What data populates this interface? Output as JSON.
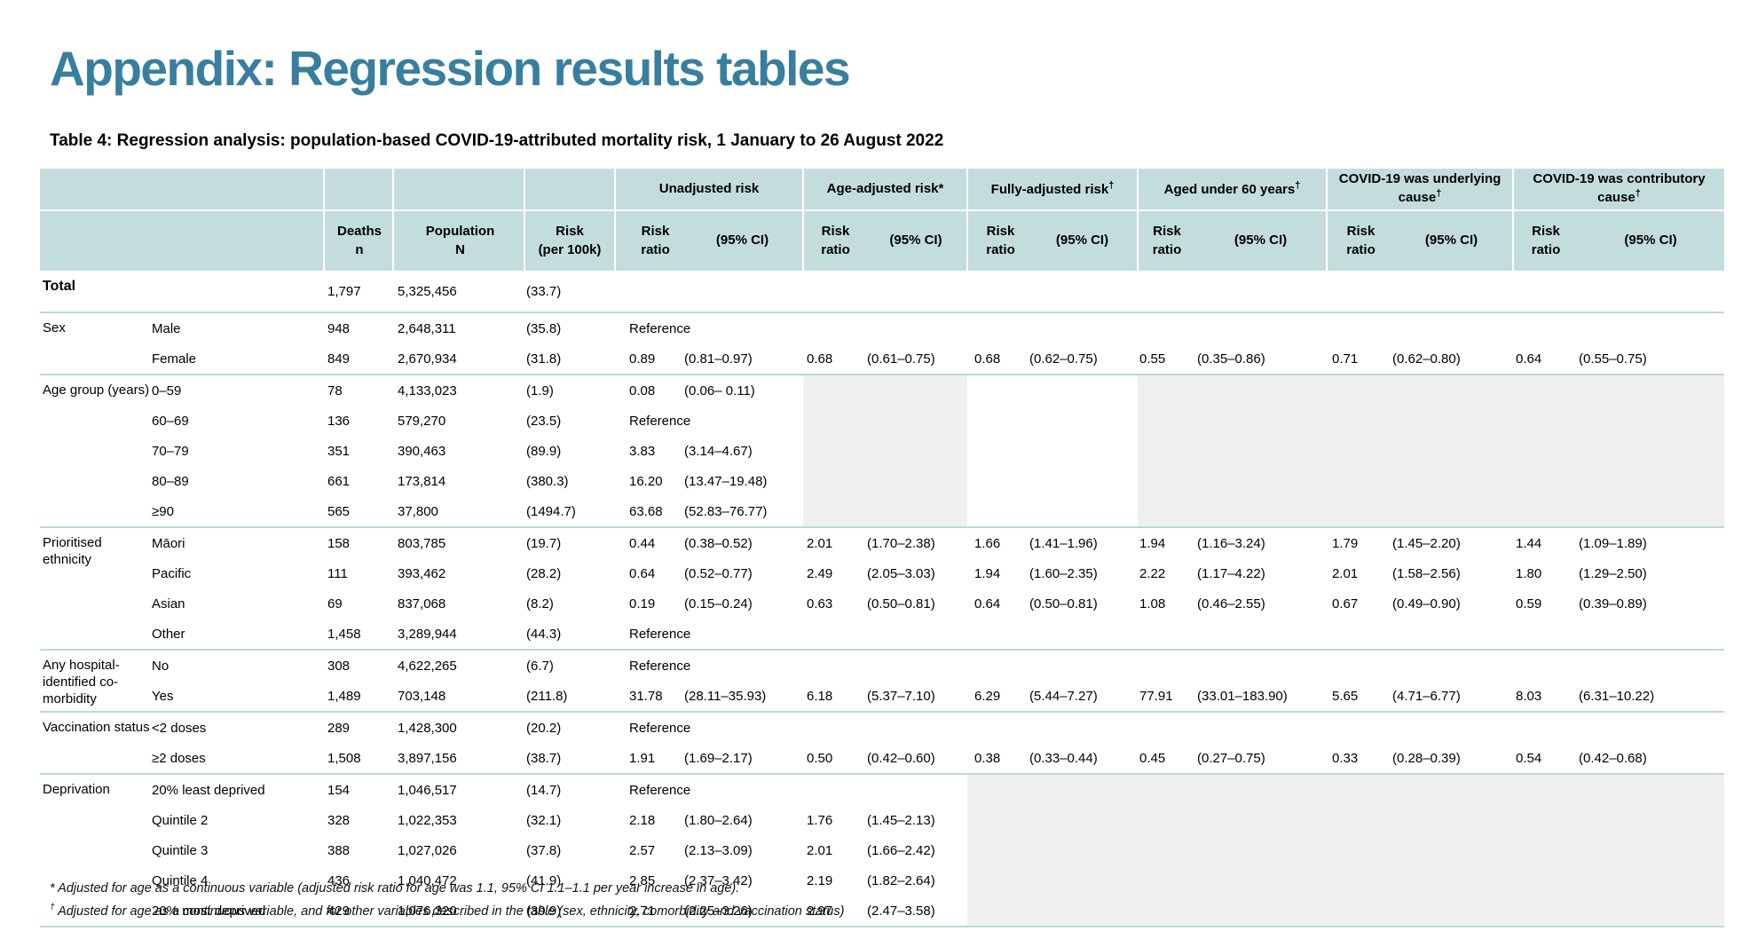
{
  "page": {
    "title": "Appendix: Regression results tables",
    "table_caption": "Table 4: Regression analysis: population-based COVID-19-attributed mortality risk, 1 January to 26 August 2022"
  },
  "colors": {
    "title_color": "#387f9f",
    "header_bg": "#c3dddc",
    "section_line": "#b9dad9",
    "shaded_cell": "#f0f0f0"
  },
  "table": {
    "header_groups": [
      {
        "label": "",
        "sup": "",
        "span": 2
      },
      {
        "label": "",
        "sup": "",
        "span": 1
      },
      {
        "label": "",
        "sup": "",
        "span": 1
      },
      {
        "label": "",
        "sup": "",
        "span": 1
      },
      {
        "label": "Unadjusted risk",
        "sup": "",
        "span": 2
      },
      {
        "label": "Age-adjusted risk*",
        "sup": "",
        "span": 2
      },
      {
        "label": "Fully-adjusted risk",
        "sup": "†",
        "span": 2
      },
      {
        "label": "Aged under 60 years",
        "sup": "†",
        "span": 2
      },
      {
        "label": "COVID-19 was underlying cause",
        "sup": "†",
        "span": 2
      },
      {
        "label": "COVID-19 was contributory cause",
        "sup": "†",
        "span": 2
      }
    ],
    "header_cols": [
      "",
      "",
      "Deaths\nn",
      "Population\nN",
      "Risk\n(per 100k)",
      "Risk ratio",
      "(95% CI)",
      "Risk\nratio",
      "(95% CI)",
      "Risk ratio",
      "(95% CI)",
      "Risk ratio",
      "(95% CI)",
      "Risk ratio",
      "(95% CI)",
      "Risk ratio",
      "(95% CI)"
    ],
    "sections": [
      {
        "category": "Total",
        "category_bold": true,
        "shade_cols": [],
        "rows": [
          {
            "sub": "",
            "values": [
              "1,797",
              "5,325,456",
              "(33.7)",
              "",
              "",
              "",
              "",
              "",
              "",
              "",
              "",
              "",
              "",
              "",
              ""
            ]
          }
        ]
      },
      {
        "category": "Sex",
        "category_bold": false,
        "shade_cols": [],
        "rows": [
          {
            "sub": "Male",
            "values": [
              "948",
              "2,648,311",
              "(35.8)",
              "Reference",
              "",
              "",
              "",
              "",
              "",
              "",
              "",
              "",
              "",
              "",
              ""
            ]
          },
          {
            "sub": "Female",
            "values": [
              "849",
              "2,670,934",
              "(31.8)",
              "0.89",
              "(0.81–0.97)",
              "0.68",
              "(0.61–0.75)",
              "0.68",
              "(0.62–0.75)",
              "0.55",
              "(0.35–0.86)",
              "0.71",
              "(0.62–0.80)",
              "0.64",
              "(0.55–0.75)"
            ]
          }
        ]
      },
      {
        "category": "Age group (years)",
        "category_bold": false,
        "shade_cols": [
          5,
          6,
          9,
          10,
          11,
          12,
          13,
          14
        ],
        "rows": [
          {
            "sub": "0–59",
            "values": [
              "78",
              "4,133,023",
              "(1.9)",
              "0.08",
              "(0.06– 0.11)",
              "",
              "",
              "",
              "",
              "",
              "",
              "",
              "",
              "",
              ""
            ]
          },
          {
            "sub": "60–69",
            "values": [
              "136",
              "579,270",
              "(23.5)",
              "Reference",
              "",
              "",
              "",
              "",
              "",
              "",
              "",
              "",
              "",
              "",
              ""
            ]
          },
          {
            "sub": "70–79",
            "values": [
              "351",
              "390,463",
              "(89.9)",
              "3.83",
              "(3.14–4.67)",
              "",
              "",
              "",
              "",
              "",
              "",
              "",
              "",
              "",
              ""
            ]
          },
          {
            "sub": "80–89",
            "values": [
              "661",
              "173,814",
              "(380.3)",
              "16.20",
              "(13.47–19.48)",
              "",
              "",
              "",
              "",
              "",
              "",
              "",
              "",
              "",
              ""
            ]
          },
          {
            "sub": "≥90",
            "values": [
              "565",
              "37,800",
              "(1494.7)",
              "63.68",
              "(52.83–76.77)",
              "",
              "",
              "",
              "",
              "",
              "",
              "",
              "",
              "",
              ""
            ]
          }
        ]
      },
      {
        "category": "Prioritised\nethnicity",
        "category_bold": false,
        "shade_cols": [],
        "rows": [
          {
            "sub": "Māori",
            "values": [
              "158",
              "803,785",
              "(19.7)",
              "0.44",
              "(0.38–0.52)",
              "2.01",
              "(1.70–2.38)",
              "1.66",
              "(1.41–1.96)",
              "1.94",
              "(1.16–3.24)",
              "1.79",
              "(1.45–2.20)",
              "1.44",
              "(1.09–1.89)"
            ]
          },
          {
            "sub": "Pacific",
            "values": [
              "111",
              "393,462",
              "(28.2)",
              "0.64",
              "(0.52–0.77)",
              "2.49",
              "(2.05–3.03)",
              "1.94",
              "(1.60–2.35)",
              "2.22",
              "(1.17–4.22)",
              "2.01",
              "(1.58–2.56)",
              "1.80",
              "(1.29–2.50)"
            ]
          },
          {
            "sub": "Asian",
            "values": [
              "69",
              "837,068",
              "(8.2)",
              "0.19",
              "(0.15–0.24)",
              "0.63",
              "(0.50–0.81)",
              "0.64",
              "(0.50–0.81)",
              "1.08",
              "(0.46–2.55)",
              "0.67",
              "(0.49–0.90)",
              "0.59",
              "(0.39–0.89)"
            ]
          },
          {
            "sub": "Other",
            "values": [
              "1,458",
              "3,289,944",
              "(44.3)",
              "Reference",
              "",
              "",
              "",
              "",
              "",
              "",
              "",
              "",
              "",
              "",
              ""
            ]
          }
        ]
      },
      {
        "category": "Any hospital-\nidentified co-\nmorbidity",
        "category_bold": false,
        "shade_cols": [],
        "rows": [
          {
            "sub": "No",
            "values": [
              "308",
              "4,622,265",
              "(6.7)",
              "Reference",
              "",
              "",
              "",
              "",
              "",
              "",
              "",
              "",
              "",
              "",
              ""
            ]
          },
          {
            "sub": "Yes",
            "values": [
              "1,489",
              "703,148",
              "(211.8)",
              "31.78",
              "(28.11–35.93)",
              "6.18",
              "(5.37–7.10)",
              "6.29",
              "(5.44–7.27)",
              "77.91",
              "(33.01–183.90)",
              "5.65",
              "(4.71–6.77)",
              "8.03",
              "(6.31–10.22)"
            ]
          }
        ]
      },
      {
        "category": "Vaccination status",
        "category_bold": false,
        "shade_cols": [],
        "rows": [
          {
            "sub": "<2 doses",
            "values": [
              "289",
              "1,428,300",
              "(20.2)",
              "Reference",
              "",
              "",
              "",
              "",
              "",
              "",
              "",
              "",
              "",
              "",
              ""
            ]
          },
          {
            "sub": "≥2 doses",
            "values": [
              "1,508",
              "3,897,156",
              "(38.7)",
              "1.91",
              "(1.69–2.17)",
              "0.50",
              "(0.42–0.60)",
              "0.38",
              "(0.33–0.44)",
              "0.45",
              "(0.27–0.75)",
              "0.33",
              "(0.28–0.39)",
              "0.54",
              "(0.42–0.68)"
            ]
          }
        ]
      },
      {
        "category": "Deprivation",
        "category_bold": false,
        "shade_cols": [
          7,
          8,
          9,
          10,
          11,
          12,
          13,
          14
        ],
        "rows": [
          {
            "sub": "20% least deprived",
            "values": [
              "154",
              "1,046,517",
              "(14.7)",
              "Reference",
              "",
              "",
              "",
              "",
              "",
              "",
              "",
              "",
              "",
              "",
              ""
            ]
          },
          {
            "sub": "Quintile 2",
            "values": [
              "328",
              "1,022,353",
              "(32.1)",
              "2.18",
              "(1.80–2.64)",
              "1.76",
              "(1.45–2.13)",
              "",
              "",
              "",
              "",
              "",
              "",
              "",
              ""
            ]
          },
          {
            "sub": "Quintile 3",
            "values": [
              "388",
              "1,027,026",
              "(37.8)",
              "2.57",
              "(2.13–3.09)",
              "2.01",
              "(1.66–2.42)",
              "",
              "",
              "",
              "",
              "",
              "",
              "",
              ""
            ]
          },
          {
            "sub": "Quintile 4",
            "values": [
              "436",
              "1,040,472",
              "(41.9)",
              "2.85",
              "(2.37–3.42)",
              "2.19",
              "(1.82–2.64)",
              "",
              "",
              "",
              "",
              "",
              "",
              "",
              ""
            ]
          },
          {
            "sub": "20% most deprived",
            "values": [
              "429",
              "1,076,320",
              "(39.9)",
              "2.71",
              "(2.25–3.26)",
              "2.97",
              "(2.47–3.58)",
              "",
              "",
              "",
              "",
              "",
              "",
              "",
              ""
            ]
          }
        ]
      }
    ],
    "footnotes": [
      {
        "marker": "*",
        "text": "Adjusted for age as a continuous variable (adjusted risk ratio for age was 1.1, 95% CI 1.1–1.1 per year increase in age)."
      },
      {
        "marker": "†",
        "text": "Adjusted for age as a continuous variable, and for other variables described in the table (sex, ethnicity, comorbidity and vaccination status)"
      }
    ]
  }
}
